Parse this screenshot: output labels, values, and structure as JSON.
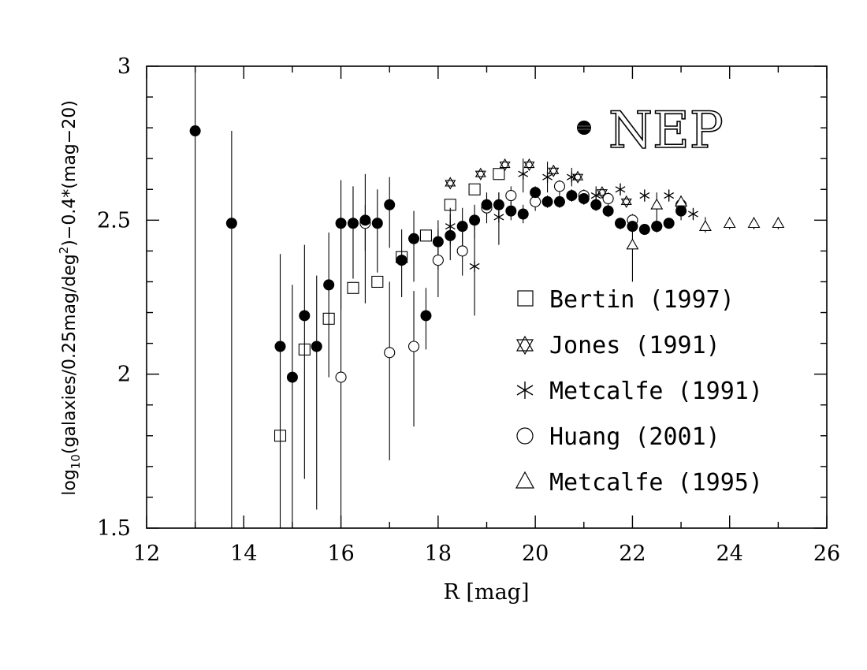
{
  "chart_data": {
    "type": "scatter",
    "annotation": "NEP",
    "xlabel": "R  [mag]",
    "ylabel_parts": [
      "log",
      "10",
      "(galaxies/0.25mag/deg",
      "2",
      ")−0.4*(mag−20)"
    ],
    "xlim": [
      12,
      26
    ],
    "ylim": [
      1.5,
      3.0
    ],
    "x_ticks": [
      "12",
      "14",
      "16",
      "18",
      "20",
      "22",
      "24",
      "26"
    ],
    "y_ticks": [
      "1.5",
      "2",
      "2.5",
      "3"
    ],
    "grid": false,
    "legend_position": "lower-right",
    "series": [
      {
        "name": "NEP",
        "marker": "filled-circle",
        "points": [
          {
            "x": 13.0,
            "y": 2.79,
            "lo": 1.5,
            "hi": 3.0
          },
          {
            "x": 13.75,
            "y": 2.49,
            "lo": 1.5,
            "hi": 2.79
          },
          {
            "x": 14.75,
            "y": 2.09,
            "lo": 1.5,
            "hi": 2.39
          },
          {
            "x": 15.0,
            "y": 1.99,
            "lo": 1.5,
            "hi": 2.29
          },
          {
            "x": 15.25,
            "y": 2.19,
            "lo": 1.66,
            "hi": 2.42
          },
          {
            "x": 15.5,
            "y": 2.09,
            "lo": 1.56,
            "hi": 2.32
          },
          {
            "x": 15.75,
            "y": 2.29,
            "lo": 1.99,
            "hi": 2.46
          },
          {
            "x": 16.0,
            "y": 2.49,
            "lo": 2.21,
            "hi": 2.63
          },
          {
            "x": 16.25,
            "y": 2.49,
            "lo": 2.31,
            "hi": 2.61
          },
          {
            "x": 16.5,
            "y": 2.5,
            "lo": 2.23,
            "hi": 2.65
          },
          {
            "x": 16.75,
            "y": 2.49,
            "lo": 2.33,
            "hi": 2.6
          },
          {
            "x": 17.0,
            "y": 2.55,
            "lo": 2.41,
            "hi": 2.64
          },
          {
            "x": 17.25,
            "y": 2.37,
            "lo": 2.25,
            "hi": 2.47
          },
          {
            "x": 17.5,
            "y": 2.44,
            "lo": 2.3,
            "hi": 2.53
          },
          {
            "x": 17.75,
            "y": 2.19,
            "lo": 2.08,
            "hi": 2.28
          },
          {
            "x": 18.0,
            "y": 2.43,
            "lo": 2.34,
            "hi": 2.5
          },
          {
            "x": 18.25,
            "y": 2.45,
            "lo": 2.37,
            "hi": 2.52
          },
          {
            "x": 18.5,
            "y": 2.48,
            "lo": 2.42,
            "hi": 2.54
          },
          {
            "x": 18.75,
            "y": 2.5,
            "lo": 2.44,
            "hi": 2.55
          },
          {
            "x": 19.0,
            "y": 2.55,
            "lo": 2.51,
            "hi": 2.59
          },
          {
            "x": 19.25,
            "y": 2.55,
            "lo": 2.51,
            "hi": 2.59
          },
          {
            "x": 19.5,
            "y": 2.53,
            "lo": 2.5,
            "hi": 2.56
          },
          {
            "x": 19.75,
            "y": 2.52,
            "lo": 2.49,
            "hi": 2.55
          },
          {
            "x": 20.0,
            "y": 2.59,
            "lo": 2.57,
            "hi": 2.61
          },
          {
            "x": 20.25,
            "y": 2.56,
            "lo": 2.54,
            "hi": 2.58
          },
          {
            "x": 20.5,
            "y": 2.56,
            "lo": 2.54,
            "hi": 2.58
          },
          {
            "x": 20.75,
            "y": 2.58,
            "lo": 2.56,
            "hi": 2.6
          },
          {
            "x": 21.0,
            "y": 2.57,
            "lo": 2.55,
            "hi": 2.59
          },
          {
            "x": 21.25,
            "y": 2.55,
            "lo": 2.53,
            "hi": 2.57
          },
          {
            "x": 21.5,
            "y": 2.53,
            "lo": 2.51,
            "hi": 2.55
          },
          {
            "x": 21.75,
            "y": 2.49,
            "lo": 2.47,
            "hi": 2.5
          },
          {
            "x": 22.0,
            "y": 2.48,
            "lo": 2.46,
            "hi": 2.49
          },
          {
            "x": 22.25,
            "y": 2.47,
            "lo": 2.46,
            "hi": 2.48
          },
          {
            "x": 22.5,
            "y": 2.48,
            "lo": 2.47,
            "hi": 2.49
          },
          {
            "x": 22.75,
            "y": 2.49,
            "lo": 2.48,
            "hi": 2.5
          },
          {
            "x": 23.0,
            "y": 2.53,
            "lo": 2.5,
            "hi": 2.56
          }
        ]
      },
      {
        "name": "Bertin (1997)",
        "marker": "square",
        "points": [
          {
            "x": 14.75,
            "y": 1.8
          },
          {
            "x": 15.25,
            "y": 2.08
          },
          {
            "x": 15.75,
            "y": 2.18
          },
          {
            "x": 16.25,
            "y": 2.28
          },
          {
            "x": 16.75,
            "y": 2.3
          },
          {
            "x": 17.25,
            "y": 2.38
          },
          {
            "x": 17.75,
            "y": 2.45
          },
          {
            "x": 18.25,
            "y": 2.55
          },
          {
            "x": 18.75,
            "y": 2.6
          },
          {
            "x": 19.25,
            "y": 2.65
          }
        ]
      },
      {
        "name": "Jones (1991)",
        "marker": "star-of-david",
        "points": [
          {
            "x": 18.25,
            "y": 2.62
          },
          {
            "x": 18.875,
            "y": 2.65
          },
          {
            "x": 19.375,
            "y": 2.68
          },
          {
            "x": 19.875,
            "y": 2.68
          },
          {
            "x": 20.375,
            "y": 2.66
          },
          {
            "x": 20.875,
            "y": 2.64
          },
          {
            "x": 21.375,
            "y": 2.59
          },
          {
            "x": 21.875,
            "y": 2.56
          }
        ]
      },
      {
        "name": "Metcalfe (1991)",
        "marker": "asterisk",
        "points": [
          {
            "x": 18.25,
            "y": 2.48,
            "lo": 2.42,
            "hi": 2.54
          },
          {
            "x": 18.75,
            "y": 2.35,
            "lo": 2.19,
            "hi": 2.49
          },
          {
            "x": 19.25,
            "y": 2.51,
            "lo": 2.42,
            "hi": 2.59
          },
          {
            "x": 19.75,
            "y": 2.65,
            "lo": 2.59,
            "hi": 2.7
          },
          {
            "x": 20.25,
            "y": 2.64,
            "lo": 2.59,
            "hi": 2.69
          },
          {
            "x": 20.75,
            "y": 2.64,
            "lo": 2.61,
            "hi": 2.67
          },
          {
            "x": 21.25,
            "y": 2.58,
            "lo": 2.55,
            "hi": 2.61
          },
          {
            "x": 21.75,
            "y": 2.6,
            "lo": 2.58,
            "hi": 2.62
          },
          {
            "x": 22.25,
            "y": 2.58,
            "lo": 2.56,
            "hi": 2.6
          },
          {
            "x": 22.75,
            "y": 2.58,
            "lo": 2.56,
            "hi": 2.6
          },
          {
            "x": 23.25,
            "y": 2.52,
            "lo": 2.5,
            "hi": 2.54
          }
        ]
      },
      {
        "name": "Huang (2001)",
        "marker": "open-circle",
        "points": [
          {
            "x": 16.0,
            "y": 1.99,
            "lo": 1.5,
            "hi": 2.5
          },
          {
            "x": 16.5,
            "y": 2.49,
            "lo": 2.4,
            "hi": 2.55
          },
          {
            "x": 17.0,
            "y": 2.07,
            "lo": 1.72,
            "hi": 2.3
          },
          {
            "x": 17.5,
            "y": 2.09,
            "lo": 1.83,
            "hi": 2.27
          },
          {
            "x": 18.0,
            "y": 2.37,
            "lo": 2.25,
            "hi": 2.47
          },
          {
            "x": 18.5,
            "y": 2.4,
            "lo": 2.32,
            "hi": 2.47
          },
          {
            "x": 19.0,
            "y": 2.54,
            "lo": 2.49,
            "hi": 2.58
          },
          {
            "x": 19.5,
            "y": 2.58,
            "lo": 2.55,
            "hi": 2.61
          },
          {
            "x": 20.0,
            "y": 2.56,
            "lo": 2.53,
            "hi": 2.59
          },
          {
            "x": 20.5,
            "y": 2.61,
            "lo": 2.58,
            "hi": 2.63
          },
          {
            "x": 21.0,
            "y": 2.58,
            "lo": 2.56,
            "hi": 2.6
          },
          {
            "x": 21.5,
            "y": 2.57,
            "lo": 2.55,
            "hi": 2.59
          },
          {
            "x": 22.0,
            "y": 2.5,
            "lo": 2.48,
            "hi": 2.52
          },
          {
            "x": 22.5,
            "y": 2.48,
            "lo": 2.46,
            "hi": 2.5
          },
          {
            "x": 23.0,
            "y": 2.55,
            "lo": 2.53,
            "hi": 2.57
          }
        ]
      },
      {
        "name": "Metcalfe (1995)",
        "marker": "triangle",
        "points": [
          {
            "x": 22.0,
            "y": 2.42,
            "lo": 2.3,
            "hi": 2.5
          },
          {
            "x": 22.5,
            "y": 2.55,
            "lo": 2.5,
            "hi": 2.59
          },
          {
            "x": 23.0,
            "y": 2.56,
            "lo": 2.53,
            "hi": 2.58
          },
          {
            "x": 23.5,
            "y": 2.48,
            "lo": 2.46,
            "hi": 2.51
          },
          {
            "x": 24.0,
            "y": 2.49,
            "lo": 2.47,
            "hi": 2.51
          },
          {
            "x": 24.5,
            "y": 2.49,
            "lo": 2.47,
            "hi": 2.51
          },
          {
            "x": 25.0,
            "y": 2.49,
            "lo": 2.47,
            "hi": 2.51
          }
        ]
      }
    ]
  }
}
